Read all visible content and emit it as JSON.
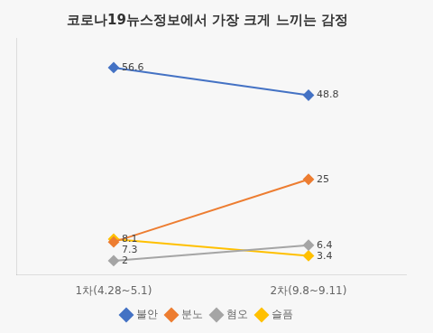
{
  "chart_data": {
    "type": "line",
    "title": "코로나19뉴스정보에서 가장 크게 느끼는 감정",
    "categories": [
      "1차(4.28~5.1)",
      "2차(9.8~9.11)"
    ],
    "series": [
      {
        "name": "불안",
        "values": [
          56.6,
          48.8
        ],
        "color": "#4472C4",
        "marker": "diamond"
      },
      {
        "name": "분노",
        "values": [
          7.3,
          25
        ],
        "color": "#ED7D31",
        "marker": "diamond"
      },
      {
        "name": "혐오",
        "values": [
          2,
          6.4
        ],
        "color": "#A5A5A5",
        "marker": "diamond"
      },
      {
        "name": "슬픔",
        "values": [
          8.1,
          3.4
        ],
        "color": "#FFC000",
        "marker": "diamond"
      }
    ],
    "ylim": [
      -2,
      65
    ],
    "tick_labels": "x",
    "grid": false,
    "legend": "bottom",
    "data_labels": true
  }
}
